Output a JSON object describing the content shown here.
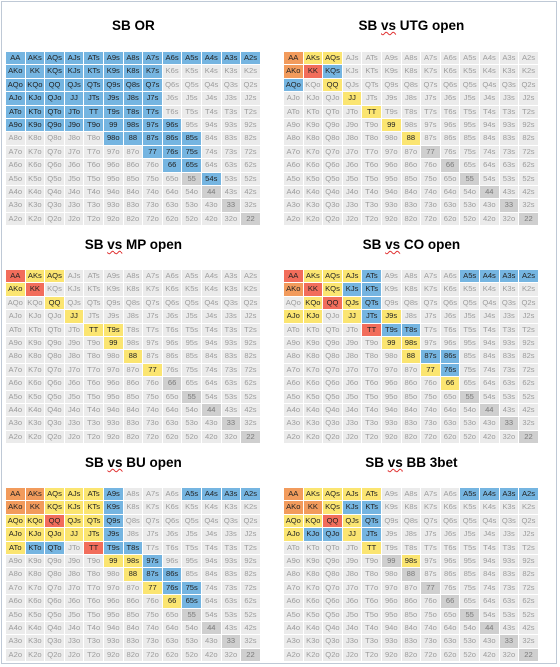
{
  "ranks": [
    "A",
    "K",
    "Q",
    "J",
    "T",
    "9",
    "8",
    "7",
    "6",
    "5",
    "4",
    "3",
    "2"
  ],
  "colors": {
    "blue": "#75b5e1",
    "yellow": "#fbe571",
    "red": "#f26d5b",
    "orange": "#f29b5c",
    "fold": "#ebebeb",
    "fold_pair": "#cfcfcf"
  },
  "panels": [
    {
      "title_plain": "SB OR",
      "title_squiggle": "",
      "title_rest": "",
      "hands": {
        "blue": [
          "AA",
          "AKs",
          "AQs",
          "AJs",
          "ATs",
          "A9s",
          "A8s",
          "A7s",
          "A6s",
          "A5s",
          "A4s",
          "A3s",
          "A2s",
          "AKo",
          "KK",
          "KQs",
          "KJs",
          "KTs",
          "K9s",
          "K8s",
          "K7s",
          "AQo",
          "KQo",
          "QQ",
          "QJs",
          "QTs",
          "Q9s",
          "Q8s",
          "Q7s",
          "AJo",
          "KJo",
          "QJo",
          "JJ",
          "JTs",
          "J9s",
          "J8s",
          "J7s",
          "ATo",
          "KTo",
          "QTo",
          "JTo",
          "TT",
          "T9s",
          "T8s",
          "T7s",
          "A9o",
          "K9o",
          "Q9o",
          "J9o",
          "T9o",
          "99",
          "98s",
          "97s",
          "96s",
          "98o",
          "88",
          "87s",
          "86s",
          "85s",
          "77",
          "76s",
          "75s",
          "66",
          "65s",
          "54s"
        ],
        "yellow": [],
        "red": [],
        "orange": []
      }
    },
    {
      "title_plain": "SB ",
      "title_squiggle": "vs",
      "title_rest": " UTG open",
      "hands": {
        "orange": [
          "AA",
          "AKo"
        ],
        "yellow": [
          "AKs",
          "AQs",
          "QQ",
          "JJ",
          "TT",
          "99",
          "88"
        ],
        "red": [
          "KK"
        ],
        "blue": [
          "KQs",
          "AQo"
        ]
      }
    },
    {
      "title_plain": "SB ",
      "title_squiggle": "vs",
      "title_rest": " MP open",
      "hands": {
        "red": [
          "AA",
          "KK"
        ],
        "yellow": [
          "AKs",
          "AQs",
          "AKo",
          "QQ",
          "JJ",
          "TT",
          "T9s",
          "99",
          "88",
          "77"
        ],
        "orange": [],
        "blue": []
      }
    },
    {
      "title_plain": "SB ",
      "title_squiggle": "vs",
      "title_rest": " CO open",
      "hands": {
        "red": [
          "AA",
          "KK",
          "QQ",
          "TT"
        ],
        "orange": [
          "AKo"
        ],
        "yellow": [
          "AKs",
          "AQs",
          "AJs",
          "KQo",
          "KQs",
          "QJs",
          "AJo",
          "KJo",
          "JJ",
          "99",
          "98s",
          "88",
          "77",
          "66",
          "J9s"
        ],
        "blue": [
          "ATs",
          "A5s",
          "A4s",
          "A3s",
          "A2s",
          "KJs",
          "KTs",
          "QTs",
          "JTs",
          "T9s",
          "T8s",
          "87s",
          "86s",
          "76s"
        ]
      }
    },
    {
      "title_plain": "SB ",
      "title_squiggle": "vs",
      "title_rest": " BU open",
      "hands": {
        "orange": [
          "AA",
          "AKo",
          "AKs",
          "KK"
        ],
        "red": [
          "QQ",
          "TT"
        ],
        "yellow": [
          "AQs",
          "AJs",
          "ATs",
          "AQo",
          "KQs",
          "KJs",
          "KTs",
          "KQo",
          "QJs",
          "QTs",
          "AJo",
          "KJo",
          "QJo",
          "JJ",
          "JTs",
          "ATo",
          "99",
          "98s",
          "88",
          "77",
          "66"
        ],
        "blue": [
          "A9s",
          "A5s",
          "A4s",
          "A3s",
          "A2s",
          "K9s",
          "Q9s",
          "J9s",
          "KTo",
          "QTo",
          "T9s",
          "T8s",
          "97s",
          "87s",
          "86s",
          "76s",
          "75s",
          "65s"
        ]
      }
    },
    {
      "title_plain": "SB ",
      "title_squiggle": "vs",
      "title_rest": " BB 3bet",
      "hands": {
        "orange": [
          "AA",
          "AKo",
          "KK"
        ],
        "red": [
          "QQ"
        ],
        "yellow": [
          "AKs",
          "AQs",
          "AJs",
          "ATs",
          "KQs",
          "AQo",
          "KQo",
          "QJs",
          "AJo",
          "JJ",
          "TT",
          "98s"
        ],
        "blue": [
          "A5s",
          "A4s",
          "A3s",
          "A2s",
          "KJs",
          "KTs",
          "QTs",
          "KJo",
          "QJo",
          "JTs"
        ]
      }
    }
  ]
}
